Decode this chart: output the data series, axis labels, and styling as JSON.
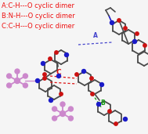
{
  "background_color": "#f5f5f5",
  "legend_lines": [
    "A:C-H———O cyclic dimer",
    "B:N-H———O cyclic dimer",
    "C:C-H———O cyclic dimer"
  ],
  "legend_color": "#ee1111",
  "legend_fontsize": 6.0,
  "figsize": [
    1.89,
    1.71
  ],
  "dpi": 100,
  "gray": "#4a4a4a",
  "gray2": "#787878",
  "blue": "#1a1ac8",
  "red": "#cc1111",
  "pink": "#cc88cc",
  "hA": "#4444cc",
  "hB": "#119911",
  "hC": "#dd1111",
  "label_fontsize": 5.5
}
